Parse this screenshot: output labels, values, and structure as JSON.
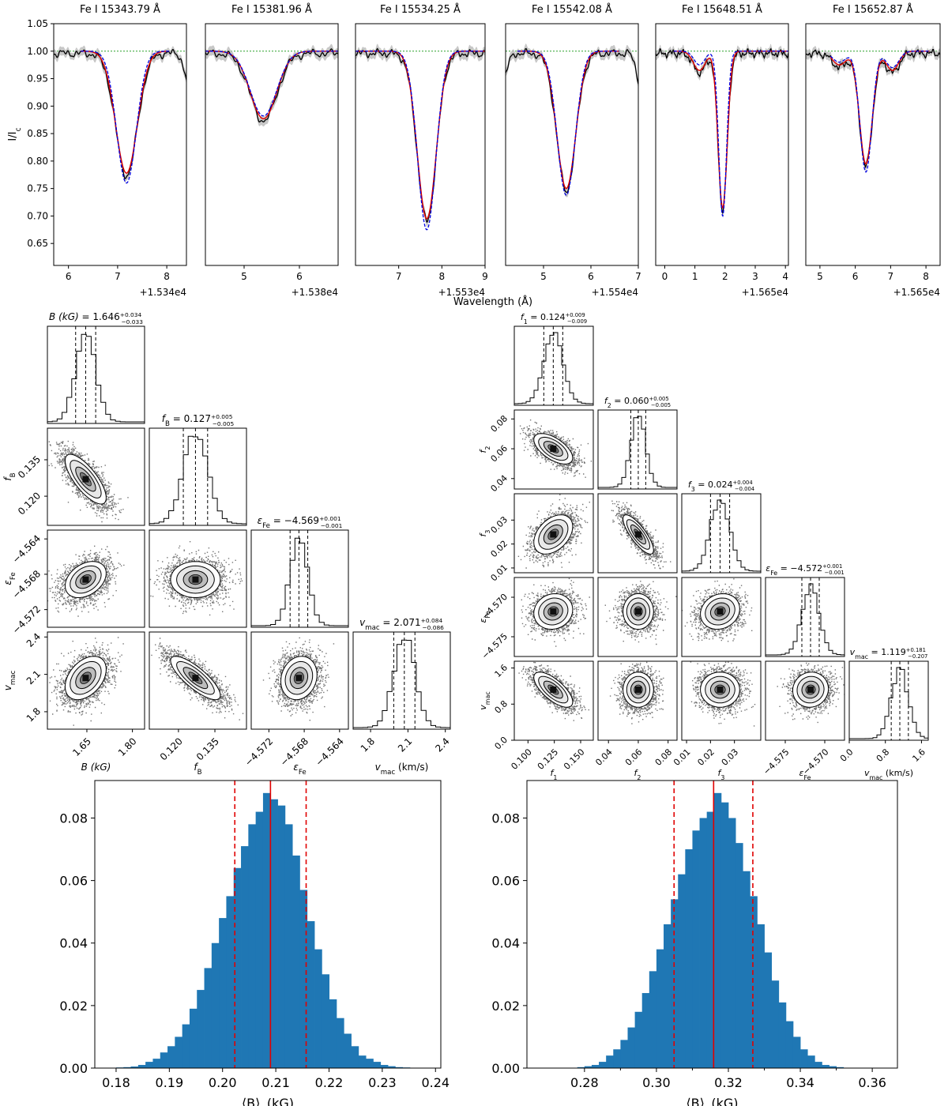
{
  "chart_data": [
    {
      "id": "spectra",
      "type": "line",
      "xlabel": "Wavelength (Å)",
      "ylabel": "I/I",
      "ylabel_sub": "c",
      "ylim": [
        0.61,
        1.05
      ],
      "yticks": [
        "0.65",
        "0.70",
        "0.75",
        "0.80",
        "0.85",
        "0.90",
        "0.95",
        "1.00",
        "1.05"
      ],
      "colors": {
        "observed": "#000000",
        "fit": "#e00000",
        "model2": "#0000e0",
        "continuum": "#2ca02c",
        "band": "#bdbdbd"
      },
      "panels": [
        {
          "title": "Fe I 15343.79 Å",
          "offset": "+1.534e4",
          "xlim": [
            5.7,
            8.4
          ],
          "xticks": [
            6,
            7,
            8
          ],
          "obs_range": [
            5.7,
            8.4
          ],
          "fit_range": [
            6.25,
            8.05
          ],
          "lines": [
            {
              "center": 7.18,
              "depth": 0.222,
              "width": 0.22,
              "depth2": 0.24,
              "width2": 0.2
            }
          ],
          "right_drop": true
        },
        {
          "title": "Fe I 15381.96 Å",
          "offset": "+1.538e4",
          "xlim": [
            4.3,
            6.7
          ],
          "xticks": [
            5,
            6
          ],
          "obs_range": [
            4.3,
            6.7
          ],
          "fit_range": [
            4.3,
            6.7
          ],
          "lines": [
            {
              "center": 5.35,
              "depth": 0.123,
              "width": 0.24,
              "depth2": 0.118,
              "width2": 0.24
            }
          ]
        },
        {
          "title": "Fe I 15534.25 Å",
          "offset": "+1.553e4",
          "xlim": [
            6.0,
            9.0
          ],
          "xticks": [
            7,
            8,
            9
          ],
          "obs_range": [
            6.0,
            9.0
          ],
          "fit_range": [
            6.0,
            9.0
          ],
          "lines": [
            {
              "center": 7.65,
              "depth": 0.305,
              "width": 0.22,
              "depth2": 0.325,
              "width2": 0.21
            }
          ]
        },
        {
          "title": "Fe I 15542.08 Å",
          "offset": "+1.554e4",
          "xlim": [
            4.2,
            7.0
          ],
          "xticks": [
            5,
            6,
            7
          ],
          "obs_range": [
            4.2,
            7.0
          ],
          "fit_range": [
            4.45,
            6.6
          ],
          "lines": [
            {
              "center": 5.48,
              "depth": 0.25,
              "width": 0.2,
              "depth2": 0.262,
              "width2": 0.19
            }
          ],
          "left_drop": true,
          "right_drop": true
        },
        {
          "title": "Fe I 15648.51 Å",
          "offset": "+1.565e4",
          "xlim": [
            -0.3,
            4.1
          ],
          "xticks": [
            0,
            1,
            2,
            3,
            4
          ],
          "obs_range": [
            -0.3,
            4.1
          ],
          "fit_range": [
            0.3,
            4.1
          ],
          "lines": [
            {
              "center": 1.92,
              "depth": 0.285,
              "width": 0.15,
              "depth2": 0.3,
              "width2": 0.13
            },
            {
              "center": 1.15,
              "depth": 0.035,
              "width": 0.2,
              "depth2": 0.025,
              "width2": 0.18
            }
          ]
        },
        {
          "title": "Fe I 15652.87 Å",
          "offset": "+1.565e4",
          "xlim": [
            4.6,
            8.4
          ],
          "xticks": [
            5,
            6,
            7,
            8
          ],
          "obs_range": [
            4.6,
            8.4
          ],
          "fit_range": [
            5.3,
            8.1
          ],
          "lines": [
            {
              "center": 6.3,
              "depth": 0.205,
              "width": 0.18,
              "depth2": 0.22,
              "width2": 0.17
            },
            {
              "center": 5.55,
              "depth": 0.025,
              "width": 0.2,
              "depth2": 0.02,
              "width2": 0.2
            },
            {
              "center": 7.05,
              "depth": 0.035,
              "width": 0.18,
              "depth2": 0.03,
              "width2": 0.18
            }
          ]
        }
      ]
    },
    {
      "id": "corner-a",
      "type": "scatter",
      "params": [
        {
          "label": "B (kG)",
          "title_lhs": "B (kG) = ",
          "value": "1.646",
          "plus": "+0.034",
          "minus": "−0.033",
          "mean": 1.646,
          "sd": 0.033,
          "range": [
            1.52,
            1.84
          ],
          "ticks": [
            1.65,
            1.8
          ],
          "ticklabels": [
            "1.65",
            "1.80"
          ]
        },
        {
          "label": "f",
          "label_sub": "B",
          "title_lhs": "f",
          "title_sub": "B",
          "value": "0.127",
          "plus": "+0.005",
          "minus": "−0.005",
          "mean": 0.127,
          "sd": 0.005,
          "range": [
            0.108,
            0.148
          ],
          "ticks": [
            0.12,
            0.135
          ],
          "ticklabels": [
            "0.120",
            "0.135"
          ]
        },
        {
          "label": "ε",
          "label_sub": "Fe",
          "title_lhs": "ε",
          "title_sub": "Fe",
          "value": "−4.569",
          "plus": "+0.001",
          "minus": "−0.001",
          "mean": -4.5686,
          "sd": 0.001,
          "range": [
            -4.574,
            -4.563
          ],
          "ticks": [
            -4.572,
            -4.568,
            -4.564
          ],
          "ticklabels": [
            "−4.572",
            "−4.568",
            "−4.564"
          ]
        },
        {
          "label": "v",
          "label_sub": "mac",
          "label_tail": " (km/s)",
          "title_lhs": "v",
          "title_sub": "mac",
          "value": "2.071",
          "plus": "+0.084",
          "minus": "−0.086",
          "mean": 2.071,
          "sd": 0.085,
          "range": [
            1.66,
            2.44
          ],
          "ticks": [
            1.8,
            2.1,
            2.4
          ],
          "ticklabels": [
            "1.8",
            "2.1",
            "2.4"
          ]
        }
      ],
      "correlations": [
        [
          0,
          1,
          -0.75
        ],
        [
          0,
          2,
          0.35
        ],
        [
          0,
          3,
          0.4
        ],
        [
          1,
          2,
          0.0
        ],
        [
          1,
          3,
          -0.8
        ],
        [
          2,
          3,
          0.15
        ]
      ]
    },
    {
      "id": "corner-b",
      "type": "scatter",
      "params": [
        {
          "label": "f",
          "label_sub": "1",
          "title_lhs": "f",
          "title_sub": "1",
          "value": "0.124",
          "plus": "+0.009",
          "minus": "−0.009",
          "mean": 0.124,
          "sd": 0.009,
          "range": [
            0.087,
            0.162
          ],
          "ticks": [
            0.1,
            0.125,
            0.15
          ],
          "ticklabels": [
            "0.100",
            "0.125",
            "0.150"
          ]
        },
        {
          "label": "f",
          "label_sub": "2",
          "title_lhs": "f",
          "title_sub": "2",
          "value": "0.060",
          "plus": "+0.005",
          "minus": "−0.005",
          "mean": 0.06,
          "sd": 0.005,
          "range": [
            0.033,
            0.086
          ],
          "ticks": [
            0.04,
            0.06,
            0.08
          ],
          "ticklabels": [
            "0.04",
            "0.06",
            "0.08"
          ]
        },
        {
          "label": "f",
          "label_sub": "3",
          "title_lhs": "f",
          "title_sub": "3",
          "value": "0.024",
          "plus": "+0.004",
          "minus": "−0.004",
          "mean": 0.024,
          "sd": 0.004,
          "range": [
            0.008,
            0.041
          ],
          "ticks": [
            0.01,
            0.02,
            0.03
          ],
          "ticklabels": [
            "0.01",
            "0.02",
            "0.03"
          ]
        },
        {
          "label": "ε",
          "label_sub": "Fe",
          "title_lhs": "ε",
          "title_sub": "Fe",
          "value": "−4.572",
          "plus": "+0.001",
          "minus": "−0.001",
          "mean": -4.5718,
          "sd": 0.0011,
          "range": [
            -4.5775,
            -4.5675
          ],
          "ticks": [
            -4.575,
            -4.57
          ],
          "ticklabels": [
            "−4.575",
            "−4.570"
          ]
        },
        {
          "label": "v",
          "label_sub": "mac",
          "label_tail": " (km/s)",
          "title_lhs": "v",
          "title_sub": "mac",
          "value": "1.119",
          "plus": "+0.181",
          "minus": "−0.207",
          "mean": 1.12,
          "sd": 0.19,
          "range": [
            0.0,
            1.75
          ],
          "ticks": [
            0.0,
            0.8,
            1.6
          ],
          "ticklabels": [
            "0.0",
            "0.8",
            "1.6"
          ]
        }
      ],
      "correlations": [
        [
          0,
          1,
          -0.6
        ],
        [
          0,
          2,
          0.4
        ],
        [
          0,
          3,
          0.1
        ],
        [
          0,
          4,
          -0.7
        ],
        [
          1,
          2,
          -0.8
        ],
        [
          1,
          3,
          0.0
        ],
        [
          1,
          4,
          0.0
        ],
        [
          2,
          3,
          0.15
        ],
        [
          2,
          4,
          0.0
        ],
        [
          3,
          4,
          0.05
        ]
      ]
    },
    {
      "id": "bfield-hist-a",
      "type": "bar",
      "xlabel": "⟨B⟩",
      "xlabel_sub": "I",
      "xlabel_tail": " (kG)",
      "xlim": [
        0.176,
        0.241
      ],
      "ylim": [
        0,
        0.092
      ],
      "xticks": [
        "0.18",
        "0.19",
        "0.20",
        "0.21",
        "0.22",
        "0.23",
        "0.24"
      ],
      "yticks": [
        "0.00",
        "0.02",
        "0.04",
        "0.06",
        "0.08"
      ],
      "bar_color": "#1f77b4",
      "median": 0.209,
      "lower": 0.2023,
      "upper": 0.2157,
      "bin_start": 0.18,
      "bin_width": 0.00138,
      "values": [
        0.0002,
        0.0003,
        0.0005,
        0.001,
        0.002,
        0.003,
        0.005,
        0.007,
        0.01,
        0.014,
        0.019,
        0.025,
        0.032,
        0.04,
        0.048,
        0.055,
        0.064,
        0.071,
        0.078,
        0.082,
        0.088,
        0.086,
        0.084,
        0.078,
        0.068,
        0.057,
        0.047,
        0.038,
        0.03,
        0.022,
        0.016,
        0.011,
        0.007,
        0.004,
        0.003,
        0.002,
        0.001,
        0.0006,
        0.0003,
        0.0002
      ]
    },
    {
      "id": "bfield-hist-b",
      "type": "bar",
      "xlabel": "⟨B⟩",
      "xlabel_sub": "I",
      "xlabel_tail": " (kG)",
      "xlim": [
        0.264,
        0.367
      ],
      "ylim": [
        0,
        0.092
      ],
      "xticks": [
        "0.28",
        "0.29",
        "0.30",
        "0.31",
        "0.32",
        "0.33",
        "0.34",
        "0.35",
        "0.36"
      ],
      "xticks_shown": [
        "0.28",
        "0.30",
        "0.32",
        "0.34",
        "0.36"
      ],
      "bar_color": "#1f77b4",
      "median": 0.3159,
      "lower": 0.3049,
      "upper": 0.3268,
      "bin_start": 0.278,
      "bin_width": 0.002,
      "values": [
        0.0003,
        0.0006,
        0.001,
        0.002,
        0.004,
        0.006,
        0.009,
        0.013,
        0.018,
        0.024,
        0.031,
        0.038,
        0.046,
        0.054,
        0.062,
        0.07,
        0.076,
        0.08,
        0.082,
        0.088,
        0.085,
        0.08,
        0.072,
        0.063,
        0.055,
        0.046,
        0.037,
        0.028,
        0.021,
        0.015,
        0.01,
        0.006,
        0.004,
        0.002,
        0.001,
        0.0006,
        0.0003
      ]
    }
  ]
}
